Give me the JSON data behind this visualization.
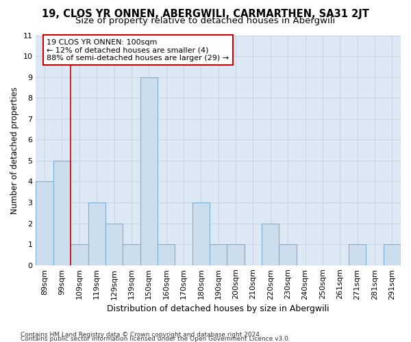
{
  "title": "19, CLOS YR ONNEN, ABERGWILI, CARMARTHEN, SA31 2JT",
  "subtitle": "Size of property relative to detached houses in Abergwili",
  "xlabel": "Distribution of detached houses by size in Abergwili",
  "ylabel": "Number of detached properties",
  "categories": [
    "89sqm",
    "99sqm",
    "109sqm",
    "119sqm",
    "129sqm",
    "139sqm",
    "150sqm",
    "160sqm",
    "170sqm",
    "180sqm",
    "190sqm",
    "200sqm",
    "210sqm",
    "220sqm",
    "230sqm",
    "240sqm",
    "250sqm",
    "261sqm",
    "271sqm",
    "281sqm",
    "291sqm"
  ],
  "values": [
    4,
    5,
    1,
    3,
    2,
    1,
    9,
    1,
    0,
    3,
    1,
    1,
    0,
    2,
    1,
    0,
    0,
    0,
    1,
    0,
    1
  ],
  "bar_color": "#ccdded",
  "bar_edge_color": "#7aafd4",
  "vline_color": "#cc0000",
  "vline_x": 1.5,
  "annotation_line1": "19 CLOS YR ONNEN: 100sqm",
  "annotation_line2": "← 12% of detached houses are smaller (4)",
  "annotation_line3": "88% of semi-detached houses are larger (29) →",
  "annotation_box_facecolor": "#ffffff",
  "annotation_box_edgecolor": "#cc0000",
  "ylim": [
    0,
    11
  ],
  "grid_color": "#c8d4e4",
  "bg_color": "#dde8f5",
  "footer_line1": "Contains HM Land Registry data © Crown copyright and database right 2024.",
  "footer_line2": "Contains public sector information licensed under the Open Government Licence v3.0.",
  "title_fontsize": 10.5,
  "subtitle_fontsize": 9.5,
  "xlabel_fontsize": 9,
  "ylabel_fontsize": 8.5,
  "tick_fontsize": 8,
  "annotation_fontsize": 8,
  "footer_fontsize": 6.5
}
